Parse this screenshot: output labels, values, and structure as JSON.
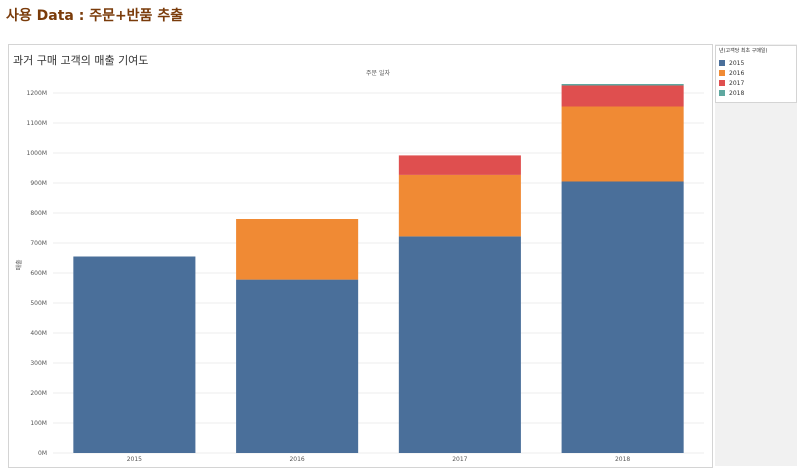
{
  "page": {
    "heading": "사용 Data : 주문+반품 추출"
  },
  "chart_data": {
    "type": "bar",
    "stacked": true,
    "title": "과거 구매 고객의 매출 기여도",
    "xlabel": "주문 일자",
    "ylabel": "매출",
    "categories": [
      "2015",
      "2016",
      "2017",
      "2018"
    ],
    "series": [
      {
        "name": "2015",
        "color": "#4a6f9a",
        "values": [
          655,
          578,
          722,
          905
        ]
      },
      {
        "name": "2016",
        "color": "#f08a34",
        "values": [
          0,
          202,
          205,
          250
        ]
      },
      {
        "name": "2017",
        "color": "#df4f4f",
        "values": [
          0,
          0,
          65,
          70
        ]
      },
      {
        "name": "2018",
        "color": "#5fa8a0",
        "values": [
          0,
          0,
          0,
          5
        ]
      }
    ],
    "ylim": [
      0,
      1250
    ],
    "yticks": [
      0,
      100,
      200,
      300,
      400,
      500,
      600,
      700,
      800,
      900,
      1000,
      1100,
      1200
    ],
    "ytick_labels": [
      "0M",
      "100M",
      "200M",
      "300M",
      "400M",
      "500M",
      "600M",
      "700M",
      "800M",
      "900M",
      "1000M",
      "1100M",
      "1200M"
    ],
    "grid": true,
    "legend": {
      "title": "년(고객당 최초 구매일)",
      "position": "top-right"
    }
  }
}
